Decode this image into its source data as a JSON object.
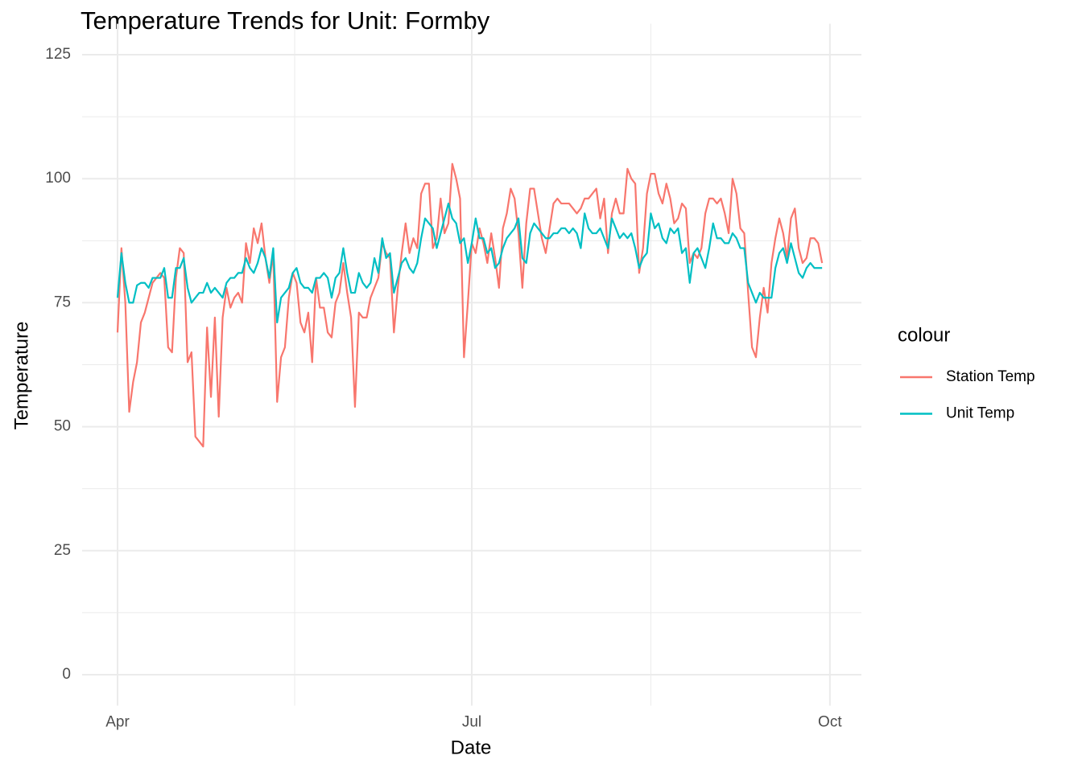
{
  "chart_data": {
    "type": "line",
    "title": "Temperature Trends for Unit: Formby",
    "x_label": "Date",
    "y_label": "Temperature",
    "legend_title": "colour",
    "legend_position": "right",
    "grid": true,
    "x": [
      0,
      1,
      2,
      3,
      4,
      5,
      6,
      7,
      8,
      9,
      10,
      11,
      12,
      13,
      14,
      15,
      16,
      17,
      18,
      19,
      20,
      21,
      22,
      23,
      24,
      25,
      26,
      27,
      28,
      29,
      30,
      31,
      32,
      33,
      34,
      35,
      36,
      37,
      38,
      39,
      40,
      41,
      42,
      43,
      44,
      45,
      46,
      47,
      48,
      49,
      50,
      51,
      52,
      53,
      54,
      55,
      56,
      57,
      58,
      59,
      60,
      61,
      62,
      63,
      64,
      65,
      66,
      67,
      68,
      69,
      70,
      71,
      72,
      73,
      74,
      75,
      76,
      77,
      78,
      79,
      80,
      81,
      82,
      83,
      84,
      85,
      86,
      87,
      88,
      89,
      90,
      91,
      92,
      93,
      94,
      95,
      96,
      97,
      98,
      99,
      100,
      101,
      102,
      103,
      104,
      105,
      106,
      107,
      108,
      109,
      110,
      111,
      112,
      113,
      114,
      115,
      116,
      117,
      118,
      119,
      120,
      121,
      122,
      123,
      124,
      125,
      126,
      127,
      128,
      129,
      130,
      131,
      132,
      133,
      134,
      135,
      136,
      137,
      138,
      139,
      140,
      141,
      142,
      143,
      144,
      145,
      146,
      147,
      148,
      149,
      150,
      151,
      152,
      153,
      154,
      155,
      156,
      157,
      158,
      159,
      160,
      161,
      162,
      163,
      164,
      165,
      166,
      167,
      168,
      169,
      170,
      171,
      172,
      173,
      174,
      175,
      176,
      177,
      178,
      179,
      180,
      181
    ],
    "series": [
      {
        "name": "Station Temp",
        "color": "#F8766D",
        "values": [
          69,
          86,
          75,
          53,
          59,
          63,
          71,
          73,
          76,
          79,
          80,
          81,
          80,
          66,
          65,
          80,
          86,
          85,
          63,
          65,
          48,
          47,
          46,
          70,
          56,
          72,
          52,
          72,
          78,
          74,
          76,
          77,
          75,
          87,
          83,
          90,
          87,
          91,
          84,
          79,
          85,
          55,
          64,
          66,
          76,
          81,
          79,
          71,
          69,
          73,
          63,
          80,
          74,
          74,
          69,
          68,
          75,
          77,
          83,
          77,
          72,
          54,
          73,
          72,
          72,
          76,
          78,
          80,
          87,
          85,
          84,
          69,
          78,
          85,
          91,
          85,
          88,
          86,
          97,
          99,
          99,
          86,
          88,
          96,
          89,
          91,
          103,
          100,
          96,
          64,
          75,
          87,
          85,
          90,
          87,
          83,
          89,
          84,
          78,
          90,
          93,
          98,
          96,
          89,
          78,
          91,
          98,
          98,
          93,
          88,
          85,
          90,
          95,
          96,
          95,
          95,
          95,
          94,
          93,
          94,
          96,
          96,
          97,
          98,
          92,
          96,
          85,
          93,
          96,
          93,
          93,
          102,
          100,
          99,
          81,
          86,
          97,
          101,
          101,
          97,
          95,
          99,
          96,
          91,
          92,
          95,
          94,
          83,
          85,
          84,
          86,
          93,
          96,
          96,
          95,
          96,
          93,
          89,
          100,
          97,
          90,
          89,
          77,
          66,
          64,
          72,
          78,
          73,
          83,
          88,
          92,
          89,
          84,
          92,
          94,
          86,
          83,
          84,
          88,
          88,
          87,
          83
        ]
      },
      {
        "name": "Unit Temp",
        "color": "#00BFC4",
        "values": [
          76,
          85,
          79,
          75,
          75,
          78.5,
          79,
          79,
          78,
          80,
          80,
          80,
          82,
          76,
          76,
          82,
          82,
          84,
          78,
          75,
          76,
          77,
          77,
          79,
          77,
          78,
          77,
          76,
          79,
          80,
          80,
          81,
          81,
          84,
          82,
          81,
          83,
          86,
          84,
          80,
          86,
          71,
          76,
          77,
          78,
          81,
          82,
          79,
          78,
          78,
          77,
          80,
          80,
          81,
          80,
          76,
          80,
          81,
          86,
          81,
          77,
          77,
          81,
          79,
          78,
          79,
          84,
          81,
          88,
          84,
          85,
          77,
          80,
          83,
          84,
          82,
          81,
          83,
          88,
          92,
          91,
          90,
          86,
          89,
          92,
          95,
          92,
          91,
          87,
          88,
          83,
          87,
          92,
          88,
          88,
          85,
          86,
          82,
          83,
          86,
          88,
          89,
          90,
          92,
          84,
          83,
          89,
          91,
          90,
          89,
          88,
          88,
          89,
          89,
          90,
          90,
          89,
          90,
          89,
          86,
          93,
          90,
          89,
          89,
          90,
          88,
          86,
          92,
          90,
          88,
          89,
          88,
          89,
          86,
          82,
          84,
          85,
          93,
          90,
          91,
          88,
          87,
          90,
          89,
          90,
          85,
          86,
          79,
          85,
          86,
          84,
          82,
          86,
          91,
          88,
          88,
          87,
          87,
          89,
          88,
          86,
          86,
          79,
          77,
          75,
          77,
          76,
          76,
          76,
          82,
          85,
          86,
          83,
          87,
          84,
          81,
          80,
          82,
          83,
          82,
          82,
          82
        ]
      }
    ],
    "xlim": [
      -9.1,
      191.1
    ],
    "xticks": [
      {
        "value": 0,
        "label": "Apr"
      },
      {
        "value": 91,
        "label": "Jul"
      },
      {
        "value": 183,
        "label": "Oct"
      }
    ],
    "xminor": [
      45.5,
      137
    ],
    "ylim": [
      -6.25,
      131.25
    ],
    "yticks": [
      0,
      25,
      50,
      75,
      100,
      125
    ],
    "yminor": [
      12.5,
      37.5,
      62.5,
      87.5,
      112.5
    ]
  }
}
